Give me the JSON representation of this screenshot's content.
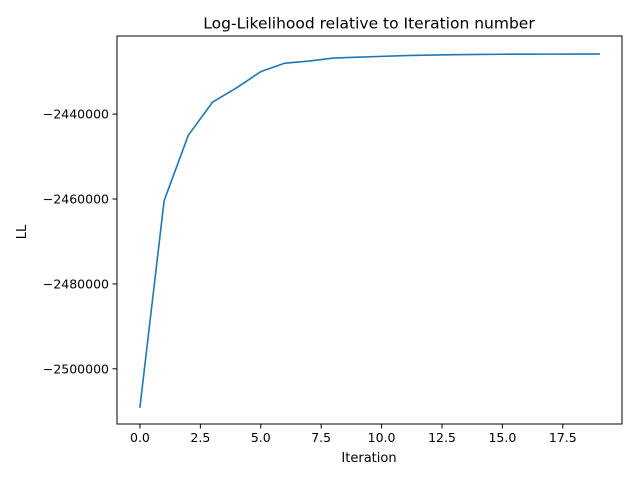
{
  "chart_data": {
    "type": "line",
    "title": "Log-Likelihood relative to Iteration number",
    "xlabel": "Iteration",
    "ylabel": "LL",
    "xlim": [
      -0.95,
      19.95
    ],
    "ylim": [
      -2513000,
      -2421600
    ],
    "xticks": [
      0.0,
      2.5,
      5.0,
      7.5,
      10.0,
      12.5,
      15.0,
      17.5
    ],
    "xtick_labels": [
      "0.0",
      "2.5",
      "5.0",
      "7.5",
      "10.0",
      "12.5",
      "15.0",
      "17.5"
    ],
    "yticks": [
      -2500000,
      -2480000,
      -2460000,
      -2440000
    ],
    "ytick_labels": [
      "−2500000",
      "−2480000",
      "−2460000",
      "−2440000"
    ],
    "grid": false,
    "line_color": "#1f77b4",
    "series": [
      {
        "x": [
          0,
          1,
          2,
          3,
          4,
          5,
          6,
          7,
          8,
          9,
          10,
          11,
          12,
          13,
          14,
          15,
          16,
          17,
          18,
          19
        ],
        "values": [
          -2509000,
          -2460400,
          -2445000,
          -2437200,
          -2433800,
          -2430000,
          -2428000,
          -2427500,
          -2426800,
          -2426600,
          -2426400,
          -2426200,
          -2426100,
          -2426000,
          -2425950,
          -2425900,
          -2425880,
          -2425870,
          -2425860,
          -2425850
        ]
      }
    ]
  }
}
